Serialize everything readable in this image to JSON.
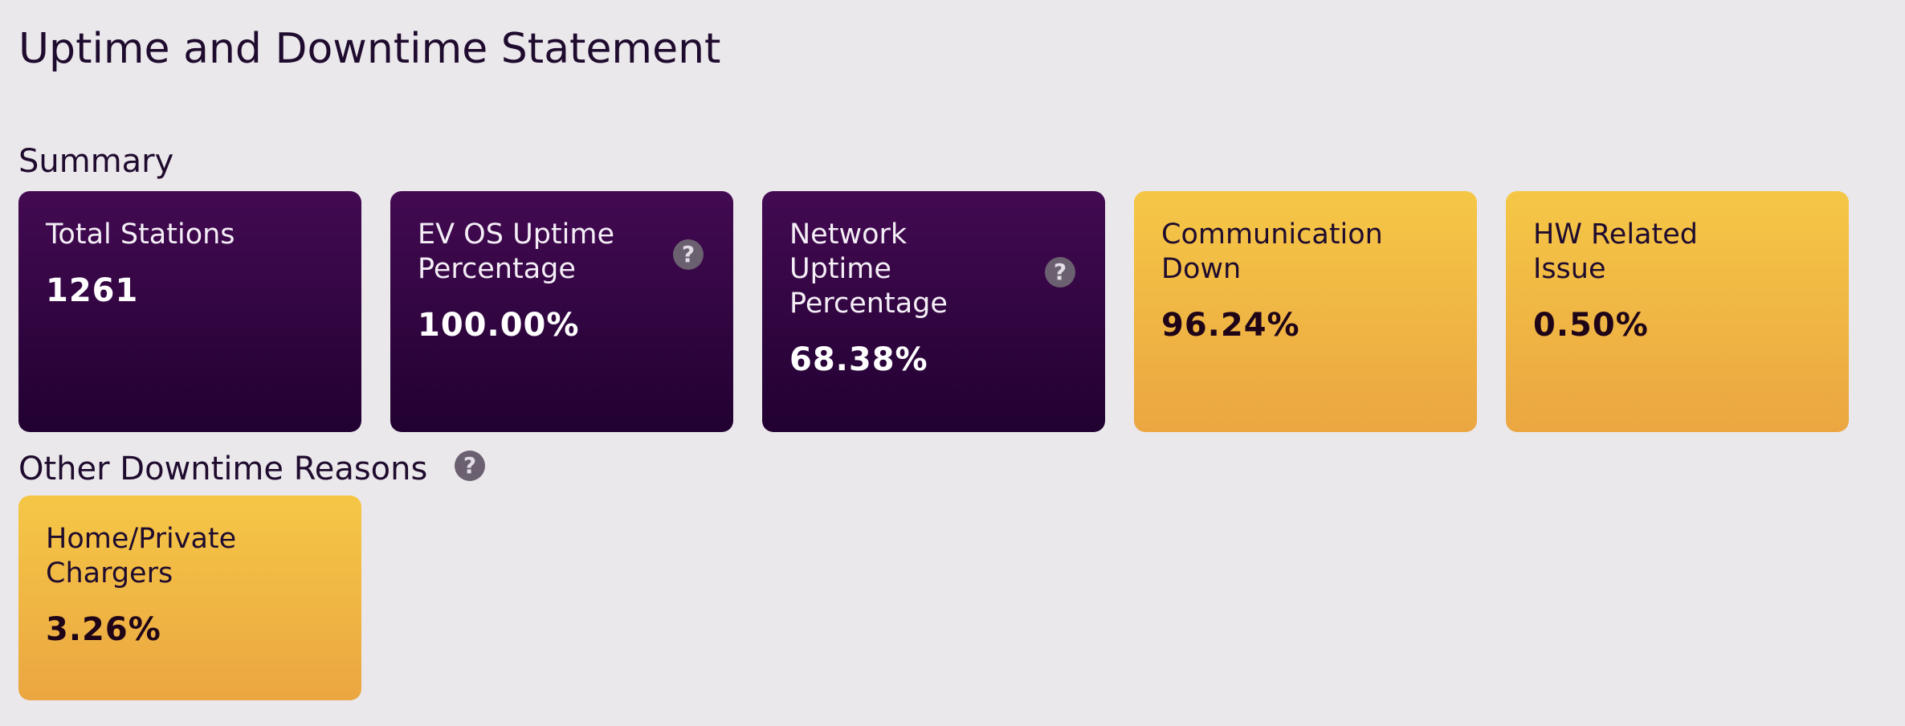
{
  "page": {
    "title": "Uptime and Downtime Statement"
  },
  "summary": {
    "heading": "Summary",
    "cards": [
      {
        "label": "Total Stations",
        "value": "1261",
        "theme": "purple"
      },
      {
        "label": "EV OS Uptime Percentage",
        "value": "100.00%",
        "theme": "purple",
        "help_icon": "question-circle-icon"
      },
      {
        "label": "Network Uptime Percentage",
        "value": "68.38%",
        "theme": "purple",
        "help_icon": "question-circle-icon"
      },
      {
        "label": "Communication Down",
        "value": "96.24%",
        "theme": "gold"
      },
      {
        "label": "HW Related Issue",
        "value": "0.50%",
        "theme": "gold"
      }
    ]
  },
  "other_downtime": {
    "heading": "Other Downtime Reasons",
    "help_icon": "question-circle-icon",
    "cards": [
      {
        "label": "Home/Private Chargers",
        "value": "3.26%",
        "theme": "gold"
      }
    ]
  },
  "icons": {
    "help_glyph": "?"
  },
  "colors": {
    "background": "#ebe8ec",
    "purple_top": "#430a52",
    "purple_bottom": "#210131",
    "gold_top": "#f5c746",
    "gold_bottom": "#eba641",
    "text_dark": "#1f0b2e"
  }
}
